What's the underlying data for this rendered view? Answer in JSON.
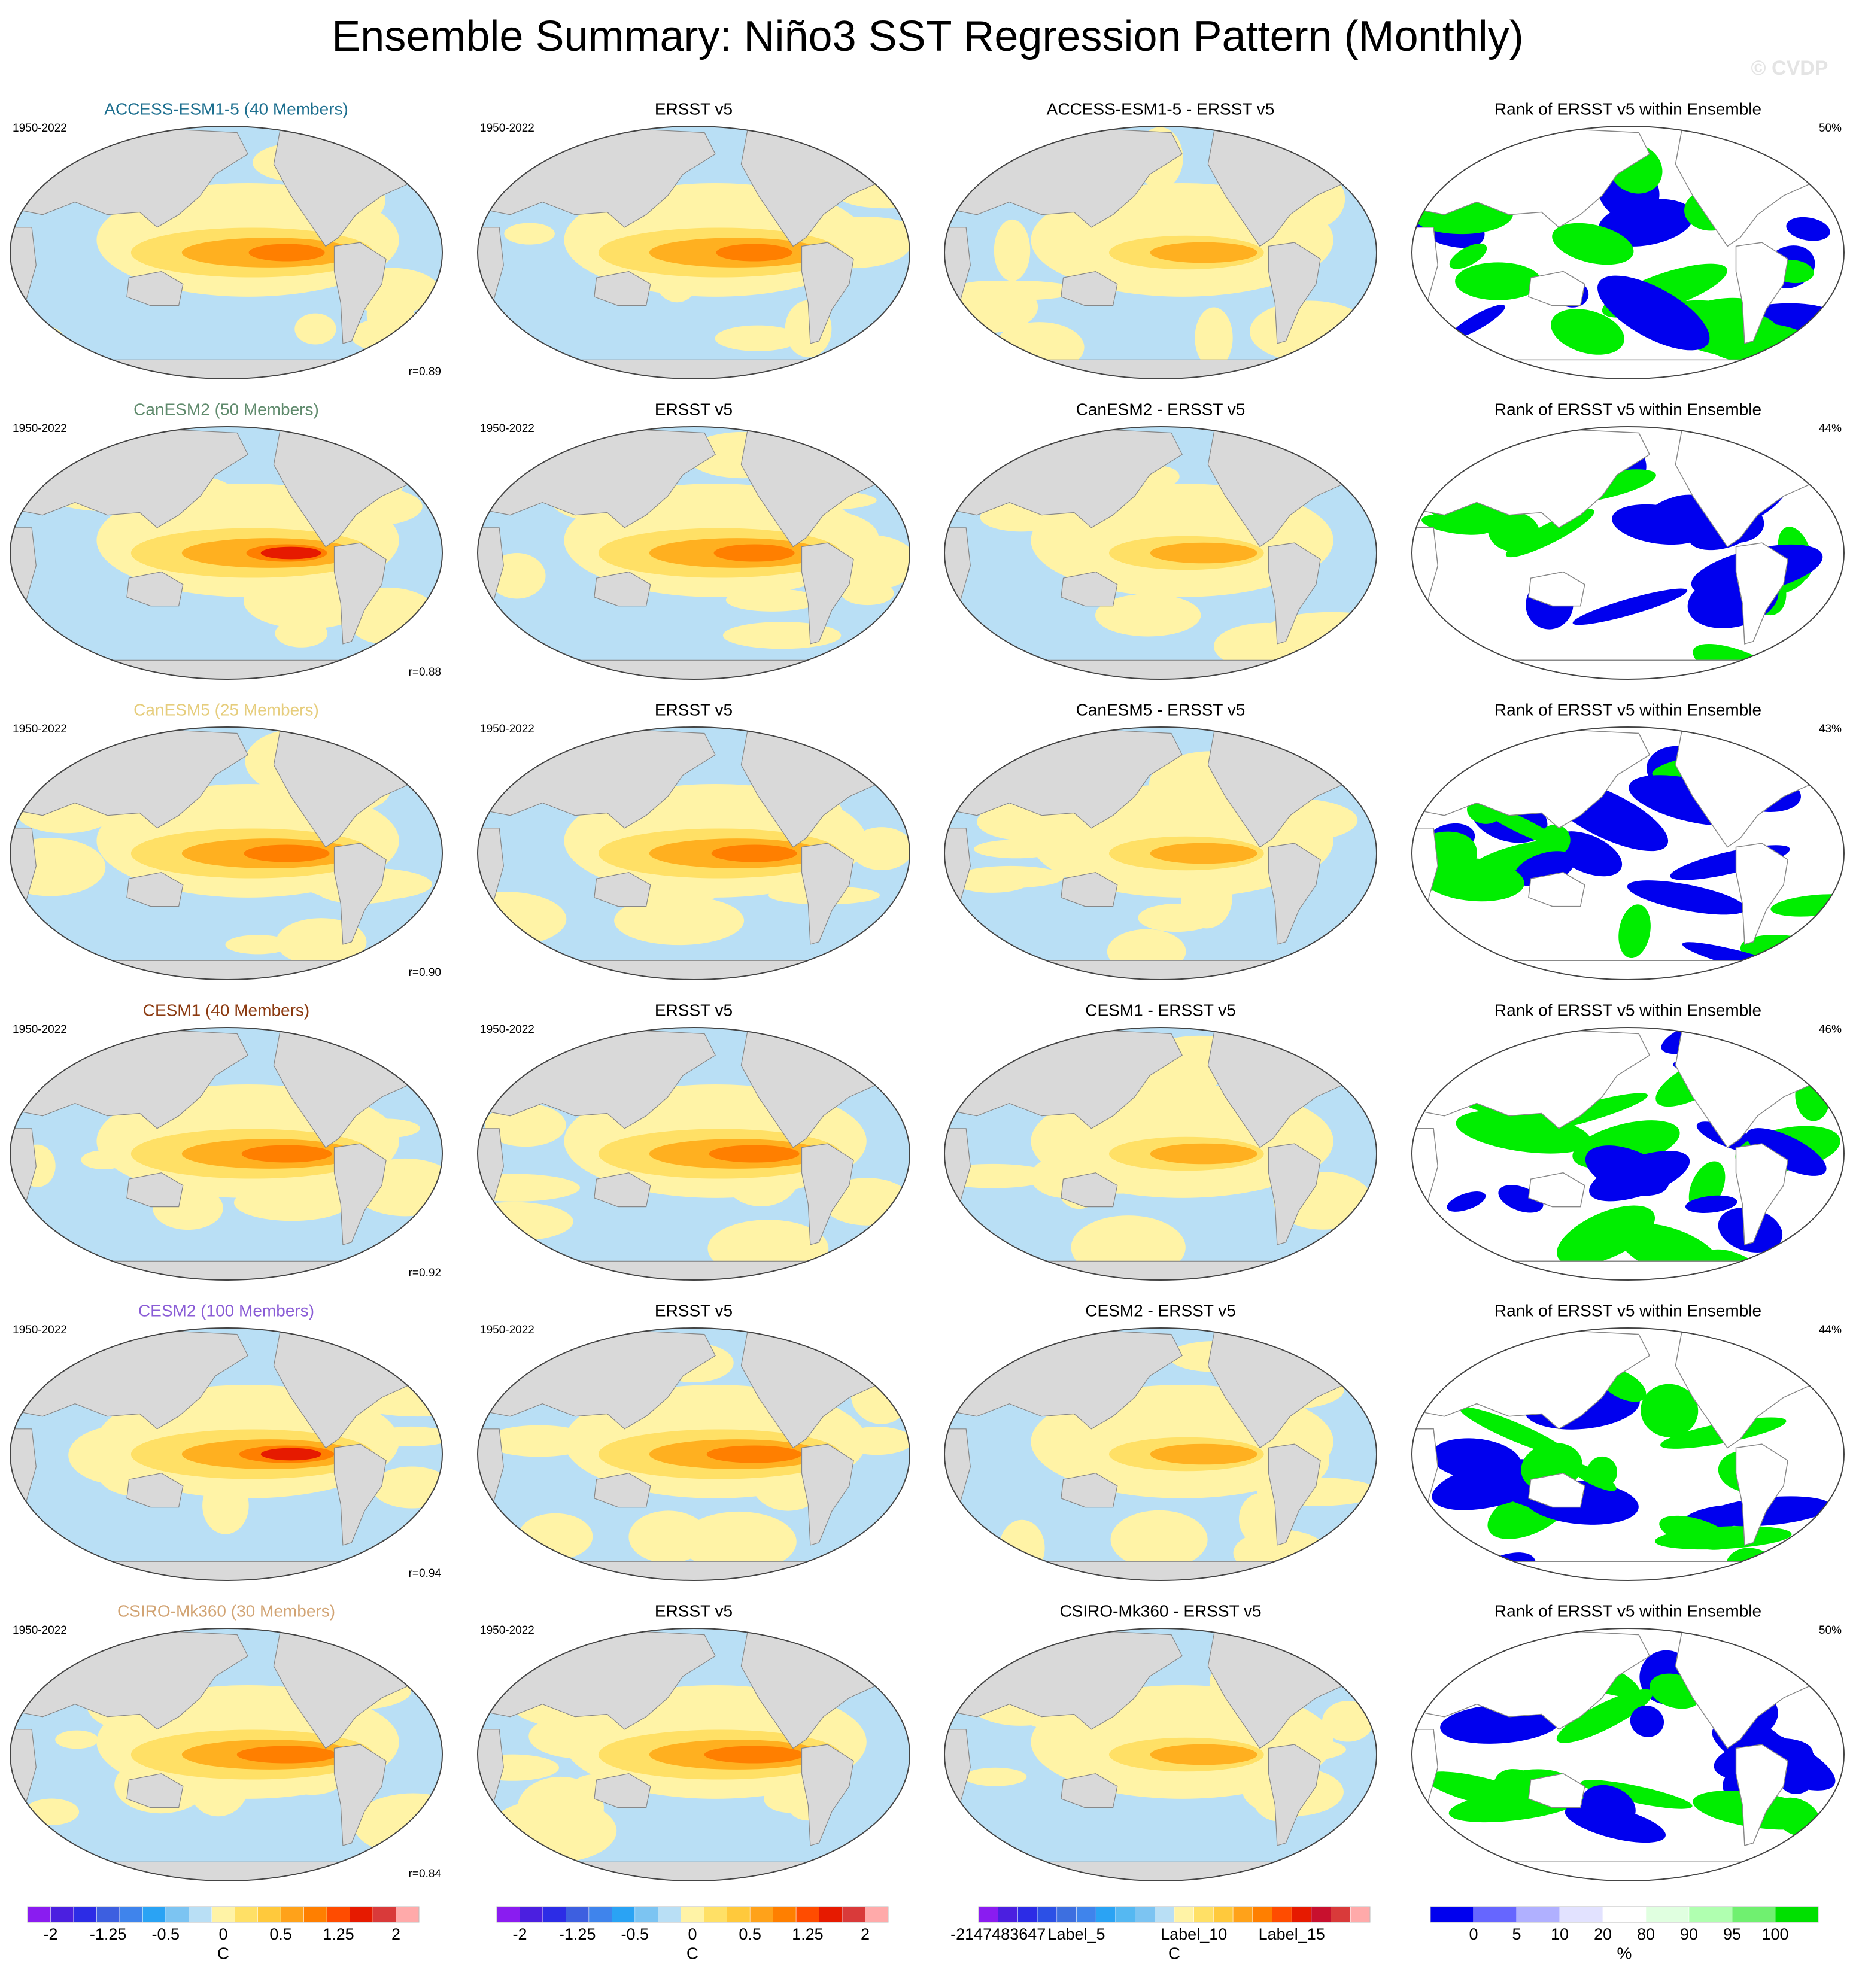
{
  "header": {
    "title": "Ensemble Summary: Niño3 SST Regression Pattern (Monthly)",
    "watermark": "© CVDP"
  },
  "rows": [
    {
      "model": "ACCESS-ESM1-5 (40 Members)",
      "model_color": "#1d6f8f",
      "period": "1950-2022",
      "r": "r=0.89",
      "obs_title": "ERSST v5",
      "obs_period": "1950-2022",
      "diff_title": "ACCESS-ESM1-5 - ERSST v5",
      "rank_title": "Rank of ERSST v5 within Ensemble",
      "rank_pct": "50%"
    },
    {
      "model": "CanESM2 (50 Members)",
      "model_color": "#5f8a6c",
      "period": "1950-2022",
      "r": "r=0.88",
      "obs_title": "ERSST v5",
      "obs_period": "1950-2022",
      "diff_title": "CanESM2 - ERSST v5",
      "rank_title": "Rank of ERSST v5 within Ensemble",
      "rank_pct": "44%"
    },
    {
      "model": "CanESM5 (25 Members)",
      "model_color": "#e6cd7c",
      "period": "1950-2022",
      "r": "r=0.90",
      "obs_title": "ERSST v5",
      "obs_period": "1950-2022",
      "diff_title": "CanESM5 - ERSST v5",
      "rank_title": "Rank of ERSST v5 within Ensemble",
      "rank_pct": "43%"
    },
    {
      "model": "CESM1 (40 Members)",
      "model_color": "#8b3a10",
      "period": "1950-2022",
      "r": "r=0.92",
      "obs_title": "ERSST v5",
      "obs_period": "1950-2022",
      "diff_title": "CESM1 - ERSST v5",
      "rank_title": "Rank of ERSST v5 within Ensemble",
      "rank_pct": "46%"
    },
    {
      "model": "CESM2 (100 Members)",
      "model_color": "#8a5cd6",
      "period": "1950-2022",
      "r": "r=0.94",
      "obs_title": "ERSST v5",
      "obs_period": "1950-2022",
      "diff_title": "CESM2 - ERSST v5",
      "rank_title": "Rank of ERSST v5 within Ensemble",
      "rank_pct": "44%"
    },
    {
      "model": "CSIRO-Mk360 (30 Members)",
      "model_color": "#d2a474",
      "period": "1950-2022",
      "r": "r=0.84",
      "obs_title": "ERSST v5",
      "obs_period": "1950-2022",
      "diff_title": "CSIRO-Mk360 - ERSST v5",
      "rank_title": "Rank of ERSST v5 within Ensemble",
      "rank_pct": "50%"
    }
  ],
  "colorbars": [
    {
      "colors": [
        "#8a1cf0",
        "#4b1fe0",
        "#2c2ce6",
        "#3d5fe0",
        "#3f84ec",
        "#2aa3f4",
        "#7cc4f2",
        "#b9dff5",
        "#fff3a6",
        "#ffe066",
        "#ffc93c",
        "#ffa21a",
        "#ff7f00",
        "#ff4c00",
        "#e61a00",
        "#d93a3a",
        "#ffaaaa"
      ],
      "labels": [
        "-2",
        "-1.25",
        "-0.5",
        "0",
        "0.5",
        "1.25",
        "2"
      ],
      "unit": "C"
    },
    {
      "colors": [
        "#8a1cf0",
        "#4b1fe0",
        "#2c2ce6",
        "#3d5fe0",
        "#3f84ec",
        "#2aa3f4",
        "#7cc4f2",
        "#b9dff5",
        "#fff3a6",
        "#ffe066",
        "#ffc93c",
        "#ffa21a",
        "#ff7f00",
        "#ff4c00",
        "#e61a00",
        "#d93a3a",
        "#ffaaaa"
      ],
      "labels": [
        "-2",
        "-1.25",
        "-0.5",
        "0",
        "0.5",
        "1.25",
        "2"
      ],
      "unit": "C"
    },
    {
      "colors": [
        "#8a1cf0",
        "#4b1fe0",
        "#2c2ce6",
        "#2c50e6",
        "#3d6fe0",
        "#3f84ec",
        "#2aa3f4",
        "#55b8f2",
        "#7cc4f2",
        "#b9dff5",
        "#fff3a6",
        "#ffe066",
        "#ffc93c",
        "#ffa21a",
        "#ff7f00",
        "#ff4c00",
        "#e61a00",
        "#c8102e",
        "#d93a3a",
        "#ffaaaa"
      ],
      "labels": [
        "-2147483647",
        "Label_5",
        "Label_10",
        "Label_15"
      ],
      "unit": "C"
    },
    {
      "colors": [
        "#0000ee",
        "#6666ff",
        "#b0b0ff",
        "#e2e2ff",
        "#ffffff",
        "#e0ffe0",
        "#b0ffb0",
        "#70f070",
        "#00e000"
      ],
      "labels": [
        "0",
        "5",
        "10",
        "20",
        "80",
        "90",
        "95",
        "100"
      ],
      "unit": "%"
    }
  ]
}
